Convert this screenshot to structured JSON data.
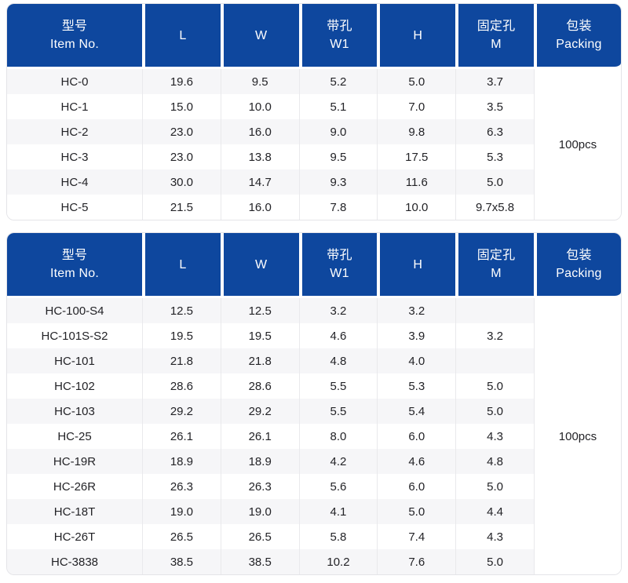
{
  "colors": {
    "header_bg": "#0e479e",
    "header_text": "#ffffff",
    "row_alt_bg": "#f6f6f8",
    "row_bg": "#ffffff",
    "body_text": "#232327",
    "grid_line": "#e9e9ec",
    "outer_border": "#e4e4e8"
  },
  "tables": [
    {
      "name": "spec-table-1",
      "columns": [
        {
          "key": "item-no",
          "line1": "型号",
          "line2": "Item No."
        },
        {
          "key": "l",
          "line1": "",
          "line2": "L"
        },
        {
          "key": "w",
          "line1": "",
          "line2": "W"
        },
        {
          "key": "w1",
          "line1": "带孔",
          "line2": "W1"
        },
        {
          "key": "h",
          "line1": "",
          "line2": "H"
        },
        {
          "key": "m",
          "line1": "固定孔",
          "line2": "M"
        },
        {
          "key": "packing",
          "line1": "包装",
          "line2": "Packing"
        }
      ],
      "rows": [
        [
          "HC-0",
          "19.6",
          "9.5",
          "5.2",
          "5.0",
          "3.7"
        ],
        [
          "HC-1",
          "15.0",
          "10.0",
          "5.1",
          "7.0",
          "3.5"
        ],
        [
          "HC-2",
          "23.0",
          "16.0",
          "9.0",
          "9.8",
          "6.3"
        ],
        [
          "HC-3",
          "23.0",
          "13.8",
          "9.5",
          "17.5",
          "5.3"
        ],
        [
          "HC-4",
          "30.0",
          "14.7",
          "9.3",
          "11.6",
          "5.0"
        ],
        [
          "HC-5",
          "21.5",
          "16.0",
          "7.8",
          "10.0",
          "9.7x5.8"
        ]
      ],
      "packing": "100pcs"
    },
    {
      "name": "spec-table-2",
      "columns": [
        {
          "key": "item-no",
          "line1": "型号",
          "line2": "Item No."
        },
        {
          "key": "l",
          "line1": "",
          "line2": "L"
        },
        {
          "key": "w",
          "line1": "",
          "line2": "W"
        },
        {
          "key": "w1",
          "line1": "带孔",
          "line2": "W1"
        },
        {
          "key": "h",
          "line1": "",
          "line2": "H"
        },
        {
          "key": "m",
          "line1": "固定孔",
          "line2": "M"
        },
        {
          "key": "packing",
          "line1": "包装",
          "line2": "Packing"
        }
      ],
      "rows": [
        [
          "HC-100-S4",
          "12.5",
          "12.5",
          "3.2",
          "3.2",
          ""
        ],
        [
          "HC-101S-S2",
          "19.5",
          "19.5",
          "4.6",
          "3.9",
          "3.2"
        ],
        [
          "HC-101",
          "21.8",
          "21.8",
          "4.8",
          "4.0",
          ""
        ],
        [
          "HC-102",
          "28.6",
          "28.6",
          "5.5",
          "5.3",
          "5.0"
        ],
        [
          "HC-103",
          "29.2",
          "29.2",
          "5.5",
          "5.4",
          "5.0"
        ],
        [
          "HC-25",
          "26.1",
          "26.1",
          "8.0",
          "6.0",
          "4.3"
        ],
        [
          "HC-19R",
          "18.9",
          "18.9",
          "4.2",
          "4.6",
          "4.8"
        ],
        [
          "HC-26R",
          "26.3",
          "26.3",
          "5.6",
          "6.0",
          "5.0"
        ],
        [
          "HC-18T",
          "19.0",
          "19.0",
          "4.1",
          "5.0",
          "4.4"
        ],
        [
          "HC-26T",
          "26.5",
          "26.5",
          "5.8",
          "7.4",
          "4.3"
        ],
        [
          "HC-3838",
          "38.5",
          "38.5",
          "10.2",
          "7.6",
          "5.0"
        ]
      ],
      "packing": "100pcs"
    }
  ]
}
